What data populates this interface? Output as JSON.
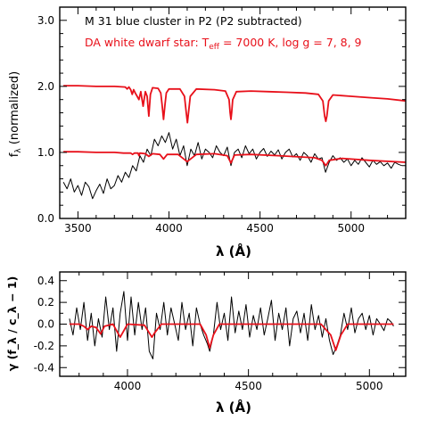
{
  "chart_data": [
    {
      "type": "line",
      "panel": "top",
      "annotations": [
        {
          "text": "M 31 blue cluster in P2 (P2 subtracted)",
          "color": "#000000"
        },
        {
          "text_main": "DA white dwarf star: T",
          "text_sub": "eff",
          "text_tail": " = 7000 K, log g = 7, 8, 9",
          "color": "#e8101a"
        }
      ],
      "xlabel": "λ (Å)",
      "ylabel_main": "f",
      "ylabel_sub": "λ",
      "ylabel_tail": " (normalized)",
      "xlim": [
        3400,
        5300
      ],
      "ylim": [
        0.0,
        3.2
      ],
      "xticks": [
        3500,
        4000,
        4500,
        5000
      ],
      "yticks": [
        0.0,
        1.0,
        2.0,
        3.0
      ],
      "ytick_labels": [
        "0.0",
        "1.0",
        "2.0",
        "3.0"
      ],
      "grid": false,
      "series": [
        {
          "color": "#000000",
          "x": [
            3420,
            3440,
            3460,
            3480,
            3500,
            3520,
            3540,
            3560,
            3580,
            3600,
            3620,
            3640,
            3660,
            3680,
            3700,
            3720,
            3740,
            3760,
            3780,
            3800,
            3820,
            3840,
            3860,
            3880,
            3900,
            3920,
            3940,
            3960,
            3980,
            4000,
            4020,
            4040,
            4060,
            4080,
            4100,
            4120,
            4140,
            4160,
            4180,
            4200,
            4220,
            4240,
            4260,
            4280,
            4300,
            4320,
            4340,
            4360,
            4380,
            4400,
            4420,
            4440,
            4460,
            4480,
            4500,
            4520,
            4540,
            4560,
            4580,
            4600,
            4620,
            4640,
            4660,
            4680,
            4700,
            4720,
            4740,
            4760,
            4780,
            4800,
            4820,
            4840,
            4860,
            4880,
            4900,
            4920,
            4940,
            4960,
            4980,
            5000,
            5020,
            5040,
            5060,
            5080,
            5100,
            5120,
            5140,
            5160,
            5180,
            5200,
            5220,
            5240,
            5260,
            5280
          ],
          "y": [
            0.55,
            0.45,
            0.6,
            0.4,
            0.5,
            0.35,
            0.55,
            0.48,
            0.3,
            0.42,
            0.52,
            0.38,
            0.6,
            0.45,
            0.5,
            0.65,
            0.55,
            0.7,
            0.62,
            0.8,
            0.72,
            0.95,
            0.85,
            1.05,
            0.95,
            1.2,
            1.1,
            1.25,
            1.15,
            1.3,
            1.05,
            1.2,
            0.95,
            1.1,
            0.8,
            1.05,
            0.95,
            1.15,
            0.9,
            1.05,
            1.0,
            0.92,
            1.1,
            1.0,
            0.95,
            1.08,
            0.8,
            1.0,
            1.05,
            0.92,
            1.1,
            0.98,
            1.05,
            0.9,
            1.0,
            1.06,
            0.94,
            1.02,
            0.96,
            1.04,
            0.9,
            1.0,
            1.05,
            0.93,
            0.98,
            0.88,
            1.0,
            0.95,
            0.85,
            0.98,
            0.9,
            0.92,
            0.7,
            0.85,
            0.95,
            0.88,
            0.92,
            0.85,
            0.9,
            0.8,
            0.88,
            0.82,
            0.92,
            0.85,
            0.78,
            0.88,
            0.82,
            0.86,
            0.8,
            0.84,
            0.76,
            0.85,
            0.82,
            0.8
          ]
        },
        {
          "color": "#e8101a",
          "x": [
            3420,
            3500,
            3600,
            3700,
            3750,
            3790,
            3800,
            3810,
            3830,
            3835,
            3840,
            3870,
            3889,
            3910,
            3950,
            3970,
            3990,
            4050,
            4100,
            4150,
            4250,
            4320,
            4340,
            4360,
            4450,
            4600,
            4800,
            4840,
            4861,
            4880,
            4950,
            5100,
            5300
          ],
          "y": [
            1.01,
            1.01,
            1.0,
            1.0,
            0.99,
            0.99,
            0.97,
            0.99,
            0.99,
            0.95,
            0.99,
            0.98,
            0.94,
            0.98,
            0.97,
            0.9,
            0.97,
            0.97,
            0.86,
            0.97,
            0.98,
            0.95,
            0.84,
            0.96,
            0.97,
            0.95,
            0.92,
            0.88,
            0.8,
            0.88,
            0.91,
            0.88,
            0.85
          ]
        },
        {
          "color": "#e8101a",
          "x": [
            3420,
            3500,
            3600,
            3700,
            3760,
            3770,
            3780,
            3790,
            3798,
            3806,
            3815,
            3825,
            3835,
            3845,
            3858,
            3870,
            3880,
            3889,
            3898,
            3910,
            3940,
            3955,
            3962,
            3970,
            3978,
            3985,
            4000,
            4060,
            4085,
            4095,
            4101,
            4107,
            4117,
            4150,
            4250,
            4310,
            4330,
            4336,
            4340,
            4344,
            4350,
            4370,
            4450,
            4550,
            4650,
            4750,
            4820,
            4845,
            4855,
            4861,
            4867,
            4877,
            4900,
            5000,
            5100,
            5200,
            5300
          ],
          "y": [
            2.01,
            2.01,
            2.0,
            2.0,
            1.99,
            1.96,
            1.99,
            1.95,
            1.88,
            1.95,
            1.9,
            1.85,
            1.8,
            1.92,
            1.7,
            1.92,
            1.85,
            1.55,
            1.88,
            1.98,
            1.97,
            1.9,
            1.72,
            1.5,
            1.72,
            1.9,
            1.96,
            1.96,
            1.85,
            1.6,
            1.45,
            1.6,
            1.85,
            1.96,
            1.95,
            1.93,
            1.8,
            1.6,
            1.5,
            1.6,
            1.8,
            1.92,
            1.93,
            1.92,
            1.91,
            1.9,
            1.88,
            1.78,
            1.55,
            1.47,
            1.55,
            1.78,
            1.87,
            1.85,
            1.83,
            1.81,
            1.78
          ]
        }
      ]
    },
    {
      "type": "line",
      "panel": "bottom",
      "xlabel": "λ (Å)",
      "ylabel": "γ (f_λ / c_λ − 1)",
      "xlim": [
        3720,
        5150
      ],
      "ylim": [
        -0.48,
        0.48
      ],
      "xticks": [
        4000,
        4500,
        5000
      ],
      "yticks": [
        -0.4,
        -0.2,
        0.0,
        0.2,
        0.4
      ],
      "ytick_labels": [
        "-0.4",
        "-0.2",
        "0.0",
        "0.2",
        "0.4"
      ],
      "grid": false,
      "series": [
        {
          "color": "#000000",
          "x": [
            3760,
            3775,
            3790,
            3805,
            3820,
            3835,
            3850,
            3865,
            3880,
            3895,
            3910,
            3925,
            3940,
            3955,
            3970,
            3985,
            4000,
            4015,
            4030,
            4045,
            4060,
            4075,
            4090,
            4105,
            4120,
            4135,
            4150,
            4165,
            4180,
            4195,
            4210,
            4225,
            4240,
            4255,
            4270,
            4285,
            4300,
            4315,
            4330,
            4340,
            4355,
            4370,
            4385,
            4400,
            4415,
            4430,
            4445,
            4460,
            4475,
            4490,
            4505,
            4520,
            4535,
            4550,
            4565,
            4580,
            4595,
            4610,
            4625,
            4640,
            4655,
            4670,
            4685,
            4700,
            4715,
            4730,
            4745,
            4760,
            4775,
            4790,
            4805,
            4820,
            4835,
            4850,
            4865,
            4880,
            4895,
            4910,
            4925,
            4940,
            4955,
            4970,
            4985,
            5000,
            5015,
            5030,
            5045,
            5060,
            5075,
            5090,
            5100
          ],
          "y": [
            0.05,
            -0.1,
            0.15,
            -0.05,
            0.2,
            -0.15,
            0.1,
            -0.2,
            0.05,
            -0.12,
            0.25,
            -0.05,
            0.15,
            -0.25,
            0.1,
            0.3,
            -0.15,
            0.25,
            -0.1,
            0.2,
            -0.05,
            0.15,
            -0.25,
            -0.32,
            0.1,
            -0.05,
            0.2,
            -0.1,
            0.15,
            0.0,
            -0.15,
            0.2,
            -0.05,
            0.1,
            -0.2,
            0.15,
            0.0,
            -0.1,
            -0.18,
            -0.25,
            -0.1,
            0.2,
            -0.05,
            0.1,
            -0.15,
            0.25,
            -0.08,
            0.12,
            -0.05,
            0.18,
            -0.12,
            0.08,
            -0.05,
            0.15,
            -0.1,
            0.05,
            0.22,
            -0.15,
            0.1,
            -0.05,
            0.15,
            -0.2,
            0.05,
            0.12,
            -0.08,
            0.1,
            -0.15,
            0.18,
            -0.05,
            0.08,
            -0.12,
            0.05,
            -0.15,
            -0.28,
            -0.2,
            -0.1,
            0.1,
            -0.05,
            0.15,
            -0.08,
            0.05,
            0.1,
            -0.05,
            0.08,
            -0.1,
            0.05,
            0.0,
            -0.06,
            0.05,
            0.02,
            -0.02
          ]
        },
        {
          "color": "#e8101a",
          "x": [
            3760,
            3800,
            3820,
            3835,
            3850,
            3870,
            3889,
            3905,
            3940,
            3960,
            3970,
            3980,
            4000,
            4070,
            4090,
            4101,
            4112,
            4140,
            4300,
            4325,
            4340,
            4355,
            4380,
            4800,
            4840,
            4861,
            4882,
            4910,
            5100
          ],
          "y": [
            0.0,
            0.0,
            -0.02,
            -0.05,
            -0.02,
            -0.03,
            -0.09,
            -0.02,
            0.0,
            -0.08,
            -0.12,
            -0.08,
            0.0,
            -0.01,
            -0.08,
            -0.12,
            -0.08,
            0.0,
            0.0,
            -0.1,
            -0.22,
            -0.1,
            0.0,
            0.0,
            -0.1,
            -0.24,
            -0.1,
            0.0,
            0.0
          ]
        }
      ]
    }
  ]
}
